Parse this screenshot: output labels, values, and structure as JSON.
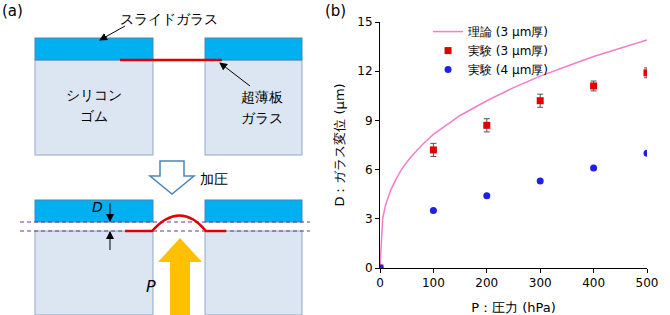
{
  "panel_a": {
    "label": "(a)",
    "slide_glass": "スライドガラス",
    "rubber": [
      "シリコン",
      "ゴム"
    ],
    "thin_glass": [
      "超薄板",
      "ガラス"
    ],
    "press": "加圧",
    "displacement": "D",
    "pressure": "P"
  },
  "chart_data": {
    "type": "scatter",
    "panel_label": "(b)",
    "x_label": "P：圧力 (hPa)",
    "y_label": "D：ガラス変位 (μm)",
    "xlim": [
      0,
      500
    ],
    "xticks": [
      0,
      100,
      200,
      300,
      400,
      500
    ],
    "ylim": [
      0,
      15
    ],
    "yticks": [
      0,
      3,
      6,
      9,
      12,
      15
    ],
    "grid": false,
    "legend": "upper left",
    "series": [
      {
        "name": "理論 (3 μm厚)",
        "type": "line",
        "color": "#f27ec9",
        "x": [
          0,
          5,
          10,
          20,
          30,
          40,
          50,
          60,
          80,
          100,
          150,
          200,
          250,
          300,
          350,
          400,
          450,
          500
        ],
        "values": [
          0,
          3.0,
          3.8,
          4.75,
          5.4,
          6.0,
          6.45,
          6.85,
          7.55,
          8.15,
          9.3,
          10.2,
          11.0,
          11.7,
          12.3,
          12.9,
          13.4,
          13.9
        ]
      },
      {
        "name": "実験 (3 μm厚)",
        "type": "scatter",
        "marker": "square",
        "color": "#e00000",
        "x": [
          0,
          100,
          200,
          300,
          400,
          500
        ],
        "values": [
          0,
          7.2,
          8.7,
          10.2,
          11.1,
          11.9
        ],
        "error": [
          null,
          0.4,
          0.4,
          0.4,
          0.3,
          0.3
        ]
      },
      {
        "name": "実験 (4 μm厚)",
        "type": "scatter",
        "marker": "circle",
        "color": "#1f1fe6",
        "x": [
          0,
          100,
          200,
          300,
          400,
          500
        ],
        "values": [
          0,
          3.5,
          4.4,
          5.3,
          6.1,
          7.0
        ]
      }
    ]
  }
}
